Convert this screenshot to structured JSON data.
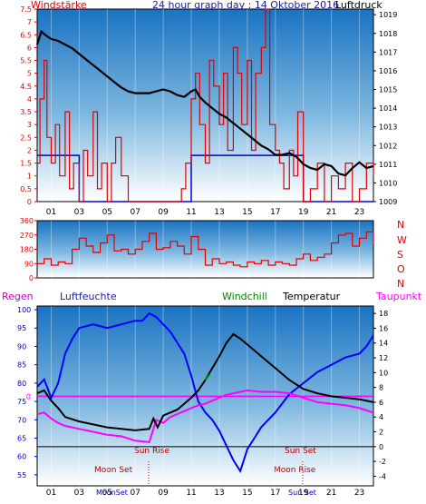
{
  "header": {
    "wind_label": "Windstärke",
    "title": "24 hour graph day : 14 Oktober 2016",
    "pressure_label": "Luftdruck"
  },
  "legend": {
    "regen": "Regen",
    "luftfeuchte": "Luftfeuchte",
    "windchill": "Windchill",
    "temperatur": "Temperatur",
    "taupunkt": "Taupunkt"
  },
  "compass": [
    "N",
    "W",
    "S",
    "O",
    "N"
  ],
  "annotations": {
    "sun_rise": "Sun Rise",
    "sun_set": "Sun Set",
    "moon_set": "Moon Set",
    "moon_rise": "Moon Rise",
    "axis_moonset": "MoonSet",
    "axis_sunset": "Sun Set"
  },
  "colors": {
    "wind": "#e00000",
    "gust": "#0000e0",
    "pressure": "#000000",
    "temperature": "#000000",
    "dewpoint": "#ff00ff",
    "humidity": "#0000ff",
    "windchill": "#008000",
    "rain": "#ff00ff"
  },
  "chart_data": [
    {
      "type": "line",
      "name": "wind_pressure",
      "x_ticks": [
        "01",
        "03",
        "05",
        "07",
        "09",
        "11",
        "13",
        "15",
        "17",
        "19",
        "21",
        "23"
      ],
      "y_left_ticks": [
        "0",
        "0.5",
        "1",
        "1.5",
        "2",
        "2.5",
        "3",
        "3.5",
        "4",
        "4.5",
        "5",
        "5.5",
        "6",
        "6.5",
        "7",
        "7.5"
      ],
      "y_right_ticks": [
        "1009",
        "1010",
        "1011",
        "1012",
        "1013",
        "1014",
        "1015",
        "1016",
        "1017",
        "1018",
        "1019"
      ],
      "ylim_left": [
        0,
        7.5
      ],
      "ylim_right": [
        1009,
        1019.3
      ],
      "xlim": [
        0,
        24
      ],
      "series": [
        {
          "name": "Luftdruck",
          "axis": "right",
          "x": [
            0,
            0.3,
            0.6,
            1,
            1.5,
            2,
            2.5,
            3,
            3.5,
            4,
            4.5,
            5,
            5.5,
            6,
            6.5,
            7,
            7.5,
            8,
            8.5,
            9,
            9.5,
            10,
            10.5,
            11,
            11.3,
            11.6,
            12,
            12.5,
            13,
            13.5,
            14,
            14.5,
            15,
            15.5,
            16,
            16.5,
            17,
            17.5,
            18,
            18.5,
            19,
            19.5,
            20,
            20.5,
            21,
            21.5,
            22,
            22.5,
            23,
            23.5,
            24
          ],
          "y": [
            1017.4,
            1018.1,
            1017.9,
            1017.7,
            1017.6,
            1017.4,
            1017.2,
            1016.9,
            1016.6,
            1016.3,
            1016.0,
            1015.7,
            1015.4,
            1015.1,
            1014.9,
            1014.8,
            1014.8,
            1014.8,
            1014.9,
            1015.0,
            1014.9,
            1014.7,
            1014.6,
            1014.9,
            1015.0,
            1014.6,
            1014.3,
            1014.0,
            1013.7,
            1013.5,
            1013.2,
            1012.9,
            1012.6,
            1012.3,
            1012.0,
            1011.8,
            1011.5,
            1011.5,
            1011.6,
            1011.4,
            1011.0,
            1010.8,
            1010.7,
            1011.0,
            1010.9,
            1010.5,
            1010.4,
            1010.8,
            1011.1,
            1010.8,
            1010.9
          ]
        },
        {
          "name": "wind",
          "axis": "left",
          "x": [
            0,
            0.2,
            0.5,
            0.7,
            1,
            1.3,
            1.6,
            2,
            2.3,
            2.6,
            3,
            3.3,
            3.6,
            4,
            4.3,
            4.6,
            5,
            5.3,
            5.6,
            6,
            6.5,
            7,
            7.5,
            8,
            8.5,
            9,
            9.5,
            10,
            10.3,
            10.6,
            11,
            11.3,
            11.6,
            12,
            12.3,
            12.6,
            13,
            13.3,
            13.6,
            14,
            14.3,
            14.6,
            15,
            15.3,
            15.6,
            16,
            16.3,
            16.6,
            17,
            17.3,
            17.6,
            18,
            18.3,
            18.6,
            19,
            19.5,
            20,
            20.5,
            21,
            21.5,
            22,
            22.5,
            23,
            23.5,
            24
          ],
          "y": [
            1.5,
            4,
            5.5,
            2.5,
            1.5,
            3,
            1,
            3.5,
            0.5,
            1.5,
            0,
            2,
            1,
            3.5,
            0.5,
            1.5,
            0,
            1.5,
            2.5,
            1,
            0,
            0,
            0,
            0,
            0,
            0,
            0,
            0,
            0.5,
            1.5,
            4,
            5,
            3,
            1.5,
            5.5,
            4.5,
            3,
            5,
            2,
            6,
            5,
            3,
            5.5,
            2,
            5,
            6,
            7.5,
            3,
            2,
            1.5,
            0.5,
            2,
            1,
            3.5,
            0,
            0.5,
            1.5,
            0,
            1,
            0.5,
            1.5,
            0,
            0.5,
            1.5,
            1
          ]
        },
        {
          "name": "gust",
          "axis": "left",
          "x": [
            0,
            0.5,
            1,
            1.5,
            2,
            3,
            4,
            5,
            6,
            7,
            8,
            9,
            10,
            11,
            11.5,
            12,
            12.5,
            13,
            13.5,
            14,
            14.5,
            15,
            15.5,
            16,
            16.5,
            17,
            17.5,
            18,
            19,
            20,
            21,
            22,
            23,
            24
          ],
          "y": [
            1.8,
            1.8,
            1.8,
            1.8,
            1.8,
            0,
            0,
            0,
            0,
            0,
            0,
            0,
            0,
            1.8,
            1.8,
            1.8,
            1.8,
            1.8,
            1.8,
            1.8,
            1.8,
            1.8,
            1.8,
            1.8,
            1.8,
            1.8,
            1.8,
            1.8,
            0,
            0,
            0,
            0,
            0,
            0
          ]
        }
      ]
    },
    {
      "type": "line",
      "name": "wind_direction",
      "y_ticks": [
        "0",
        "90",
        "180",
        "270",
        "360"
      ],
      "ylim": [
        0,
        360
      ],
      "xlim": [
        0,
        24
      ],
      "series": [
        {
          "name": "Windrichtung",
          "x": [
            0,
            0.5,
            1,
            1.5,
            2,
            2.5,
            3,
            3.5,
            4,
            4.5,
            5,
            5.5,
            6,
            6.5,
            7,
            7.5,
            8,
            8.5,
            9,
            9.5,
            10,
            10.5,
            11,
            11.5,
            12,
            12.5,
            13,
            13.5,
            14,
            14.5,
            15,
            15.5,
            16,
            16.5,
            17,
            17.5,
            18,
            18.5,
            19,
            19.5,
            20,
            20.5,
            21,
            21.5,
            22,
            22.5,
            23,
            23.5,
            24
          ],
          "y": [
            90,
            120,
            80,
            100,
            90,
            180,
            250,
            200,
            160,
            220,
            270,
            170,
            180,
            150,
            180,
            230,
            280,
            180,
            190,
            230,
            200,
            150,
            260,
            180,
            80,
            120,
            90,
            100,
            80,
            70,
            100,
            90,
            110,
            80,
            100,
            90,
            80,
            120,
            150,
            110,
            130,
            150,
            220,
            270,
            280,
            200,
            250,
            290,
            210
          ]
        }
      ]
    },
    {
      "type": "line",
      "name": "temperature_humidity",
      "x_ticks": [
        "01",
        "03",
        "05",
        "07",
        "09",
        "11",
        "13",
        "15",
        "17",
        "19",
        "21",
        "23"
      ],
      "y_left_ticks": [
        "55",
        "60",
        "65",
        "70",
        "75",
        "80",
        "85",
        "90",
        "95",
        "100"
      ],
      "y_right_ticks": [
        "-4",
        "-2",
        "0",
        "2",
        "4",
        "6",
        "8",
        "10",
        "12",
        "14",
        "16",
        "18"
      ],
      "ylim_left": [
        52,
        101
      ],
      "ylim_right": [
        -5.3,
        19
      ],
      "xlim": [
        0,
        24
      ],
      "series": [
        {
          "name": "Luftfeuchte",
          "axis": "left",
          "x": [
            0,
            0.5,
            1,
            1.5,
            2,
            2.5,
            3,
            4,
            5,
            6,
            7,
            7.5,
            8,
            8.5,
            9,
            9.5,
            10,
            10.5,
            11,
            11.5,
            12,
            12.5,
            13,
            13.5,
            14,
            14.5,
            15,
            15.5,
            16,
            17,
            18,
            19,
            20,
            21,
            22,
            23,
            23.5,
            24
          ],
          "y": [
            79,
            81,
            76,
            80,
            88,
            92,
            95,
            96,
            95,
            96,
            97,
            97,
            99,
            98,
            96,
            94,
            91,
            88,
            82,
            75,
            72,
            70,
            67,
            63,
            59,
            56,
            62,
            65,
            68,
            72,
            77,
            80,
            83,
            85,
            87,
            88,
            90,
            93
          ]
        },
        {
          "name": "Temperatur",
          "axis": "right",
          "x": [
            0,
            0.5,
            1,
            1.5,
            2,
            3,
            4,
            5,
            6,
            7,
            8,
            8.3,
            8.6,
            9,
            9.5,
            10,
            10.5,
            11,
            11.5,
            12,
            12.5,
            13,
            13.5,
            14,
            14.5,
            15,
            15.5,
            16,
            17,
            18,
            19,
            20,
            21,
            22,
            23,
            24
          ],
          "y": [
            7.2,
            7.6,
            6.2,
            5.2,
            4.0,
            3.4,
            3.0,
            2.6,
            2.4,
            2.2,
            2.4,
            3.8,
            2.6,
            4.2,
            4.6,
            5.0,
            5.8,
            6.6,
            7.6,
            9.0,
            10.6,
            12.2,
            14.0,
            15.2,
            14.6,
            13.8,
            13.0,
            12.2,
            10.6,
            9.0,
            7.8,
            7.2,
            6.8,
            6.6,
            6.4,
            6.0
          ]
        },
        {
          "name": "Taupunkt",
          "axis": "right",
          "x": [
            0,
            0.5,
            1,
            1.5,
            2,
            3,
            4,
            5,
            6,
            7,
            8,
            8.5,
            9,
            9.5,
            10,
            10.5,
            11,
            11.5,
            12,
            12.5,
            13,
            13.5,
            14,
            14.5,
            15,
            16,
            17,
            18,
            19,
            20,
            21,
            22,
            23,
            24
          ],
          "y": [
            4.4,
            4.6,
            3.8,
            3.2,
            2.8,
            2.4,
            2.0,
            1.6,
            1.4,
            0.8,
            0.6,
            3.6,
            3.2,
            4.0,
            4.4,
            4.8,
            5.2,
            5.6,
            5.8,
            6.2,
            6.6,
            7.0,
            7.2,
            7.4,
            7.6,
            7.4,
            7.4,
            7.2,
            6.6,
            6.0,
            5.8,
            5.6,
            5.2,
            4.6
          ]
        },
        {
          "name": "Windchill",
          "axis": "right",
          "x": [
            12.0,
            12.3
          ],
          "y": [
            9.0,
            9.8
          ]
        },
        {
          "name": "Regen",
          "axis": "right",
          "x": [
            0,
            24
          ],
          "y": [
            6.8,
            6.8
          ]
        }
      ]
    }
  ]
}
